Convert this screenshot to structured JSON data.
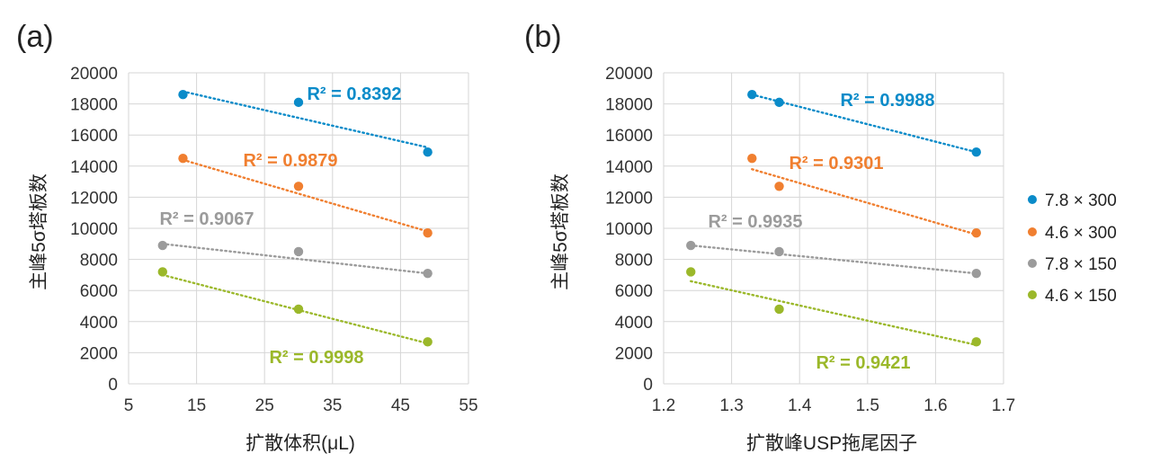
{
  "chart_data": [
    {
      "panel": "(a)",
      "type": "scatter",
      "xlabel": "扩散体积(μL)",
      "ylabel": "主峰5σ塔板数",
      "xlim": [
        5,
        55
      ],
      "ylim": [
        0,
        20000
      ],
      "xticks": [
        "5",
        "15",
        "25",
        "35",
        "45",
        "55"
      ],
      "yticks": [
        "0",
        "2000",
        "4000",
        "6000",
        "8000",
        "10000",
        "12000",
        "14000",
        "16000",
        "18000",
        "20000"
      ],
      "series": [
        {
          "name": "7.8 × 300",
          "color": "#0a8bc9",
          "x": [
            13,
            30,
            49
          ],
          "y": [
            18600,
            18100,
            14900
          ],
          "trend": [
            [
              13,
              18800
            ],
            [
              49,
              15200
            ]
          ],
          "r2": "R² = 0.8392"
        },
        {
          "name": "4.6 × 300",
          "color": "#f07f30",
          "x": [
            13,
            30,
            49
          ],
          "y": [
            14500,
            12700,
            9700
          ],
          "trend": [
            [
              13,
              14400
            ],
            [
              49,
              9800
            ]
          ],
          "r2": "R² = 0.9879"
        },
        {
          "name": "7.8 × 150",
          "color": "#9b9b9b",
          "x": [
            10,
            30,
            49
          ],
          "y": [
            8900,
            8500,
            7100
          ],
          "trend": [
            [
              10,
              9000
            ],
            [
              49,
              7100
            ]
          ],
          "r2": "R² = 0.9067"
        },
        {
          "name": "4.6 × 150",
          "color": "#9bb82a",
          "x": [
            10,
            30,
            49
          ],
          "y": [
            7200,
            4800,
            2700
          ],
          "trend": [
            [
              10,
              7000
            ],
            [
              49,
              2600
            ]
          ],
          "r2": "R² = 0.9998"
        }
      ]
    },
    {
      "panel": "(b)",
      "type": "scatter",
      "xlabel": "扩散峰USP拖尾因子",
      "ylabel": "主峰5σ塔板数",
      "xlim": [
        1.2,
        1.7
      ],
      "ylim": [
        0,
        20000
      ],
      "xticks": [
        "1.2",
        "1.3",
        "1.4",
        "1.5",
        "1.6",
        "1.7"
      ],
      "yticks": [
        "0",
        "2000",
        "4000",
        "6000",
        "8000",
        "10000",
        "12000",
        "14000",
        "16000",
        "18000",
        "20000"
      ],
      "series": [
        {
          "name": "7.8 × 300",
          "color": "#0a8bc9",
          "x": [
            1.33,
            1.37,
            1.66
          ],
          "y": [
            18600,
            18100,
            14900
          ],
          "trend": [
            [
              1.33,
              18600
            ],
            [
              1.66,
              14900
            ]
          ],
          "r2": "R² = 0.9988"
        },
        {
          "name": "4.6 × 300",
          "color": "#f07f30",
          "x": [
            1.33,
            1.37,
            1.66
          ],
          "y": [
            14500,
            12700,
            9700
          ],
          "trend": [
            [
              1.33,
              13800
            ],
            [
              1.66,
              9600
            ]
          ],
          "r2": "R² = 0.9301"
        },
        {
          "name": "7.8 × 150",
          "color": "#9b9b9b",
          "x": [
            1.24,
            1.37,
            1.66
          ],
          "y": [
            8900,
            8500,
            7100
          ],
          "trend": [
            [
              1.24,
              8900
            ],
            [
              1.66,
              7100
            ]
          ],
          "r2": "R² = 0.9935"
        },
        {
          "name": "4.6 × 150",
          "color": "#9bb82a",
          "x": [
            1.24,
            1.37,
            1.66
          ],
          "y": [
            7200,
            4800,
            2700
          ],
          "trend": [
            [
              1.24,
              6600
            ],
            [
              1.66,
              2500
            ]
          ],
          "r2": "R² = 0.9421"
        }
      ]
    }
  ],
  "legend": [
    {
      "label": "7.8 × 300",
      "color": "#0a8bc9"
    },
    {
      "label": "4.6 × 300",
      "color": "#f07f30"
    },
    {
      "label": "7.8 × 150",
      "color": "#9b9b9b"
    },
    {
      "label": "4.6 × 150",
      "color": "#9bb82a"
    }
  ]
}
